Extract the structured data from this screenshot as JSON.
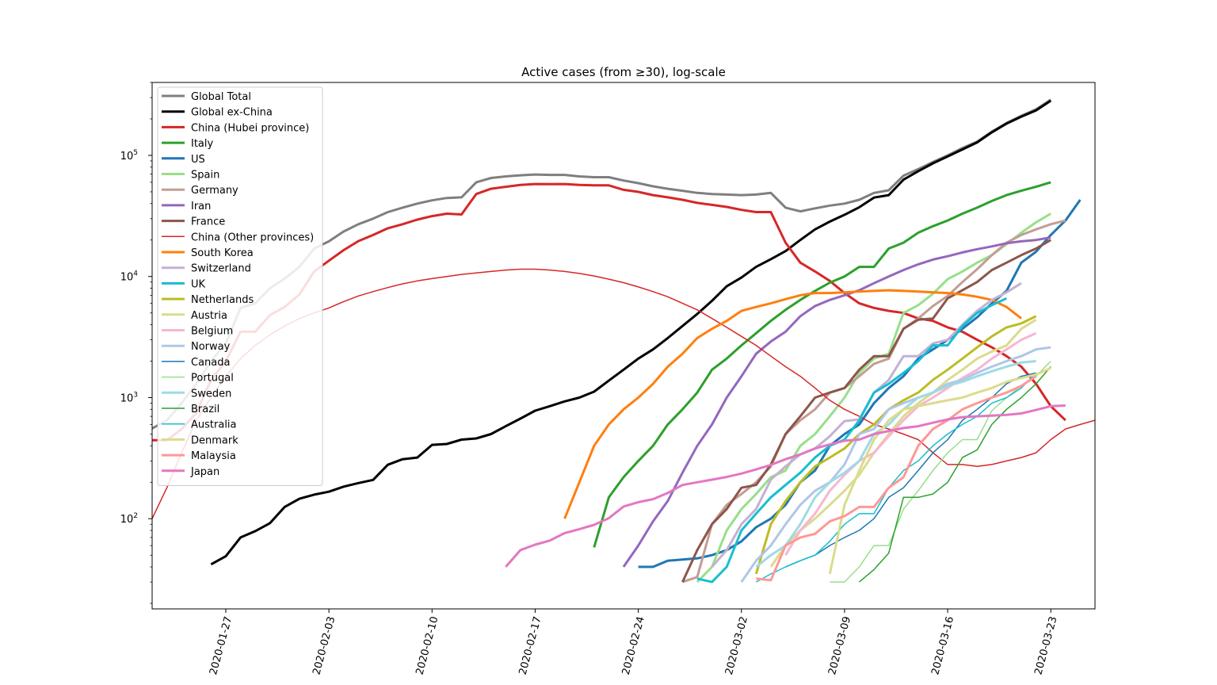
{
  "chart_data": {
    "type": "line",
    "title": "Active cases (from ≥30), log-scale",
    "xlabel": "",
    "ylabel": "",
    "y_scale": "log",
    "ylim": [
      18,
      400000
    ],
    "xlim": [
      "2020-01-22",
      "2020-03-26"
    ],
    "grid": false,
    "legend_position": "top-left",
    "x_ticks": [
      "2020-01-27",
      "2020-02-03",
      "2020-02-10",
      "2020-02-17",
      "2020-02-24",
      "2020-03-02",
      "2020-03-09",
      "2020-03-16",
      "2020-03-23"
    ],
    "y_ticks": [
      {
        "value": 100,
        "base": "10",
        "exp": "2"
      },
      {
        "value": 1000,
        "base": "10",
        "exp": "3"
      },
      {
        "value": 10000,
        "base": "10",
        "exp": "4"
      },
      {
        "value": 100000,
        "base": "10",
        "exp": "5"
      }
    ],
    "series": [
      {
        "name": "Global Total",
        "color": "#7f7f7f",
        "width": 3,
        "start": "2020-01-22",
        "values": [
          555,
          650,
          900,
          1300,
          2000,
          2800,
          5500,
          6000,
          8000,
          9600,
          12000,
          17000,
          19500,
          23500,
          27000,
          30000,
          34000,
          37000,
          40000,
          42500,
          44500,
          45000,
          60000,
          65000,
          67000,
          68500,
          69500,
          69000,
          69000,
          67000,
          66000,
          66000,
          62000,
          59000,
          55500,
          53000,
          51000,
          49000,
          48000,
          47500,
          47000,
          47500,
          49000,
          37000,
          34500,
          36500,
          38500,
          40000,
          43000,
          49000,
          51500,
          68000,
          77000,
          88000,
          100000,
          115000,
          130000,
          157000,
          185000,
          212000,
          240000,
          288000
        ]
      },
      {
        "name": "Global ex-China",
        "color": "#000000",
        "width": 3,
        "start": "2020-01-26",
        "values": [
          42,
          49,
          70,
          79,
          92,
          125,
          146,
          158,
          167,
          184,
          197,
          209,
          279,
          310,
          320,
          407,
          414,
          450,
          460,
          500,
          580,
          670,
          780,
          850,
          930,
          1000,
          1120,
          1380,
          1700,
          2100,
          2500,
          3100,
          3900,
          4900,
          6300,
          8300,
          9800,
          12000,
          13900,
          16200,
          20000,
          24500,
          28400,
          32300,
          37300,
          44800,
          47000,
          63000,
          74000,
          86000,
          98000,
          112000,
          128000,
          155000,
          183000,
          209000,
          235000,
          283000
        ]
      },
      {
        "name": "China (Hubei province)",
        "color": "#d62728",
        "width": 3,
        "start": "2020-01-22",
        "values": [
          445,
          445,
          549,
          750,
          1400,
          2000,
          3500,
          3500,
          4800,
          5600,
          7100,
          11000,
          13500,
          16500,
          19600,
          22000,
          25000,
          27000,
          29500,
          31500,
          33000,
          32500,
          48000,
          53000,
          55000,
          57000,
          58000,
          57800,
          58000,
          57000,
          56500,
          56500,
          52000,
          50000,
          47000,
          45000,
          43000,
          40500,
          39000,
          37500,
          35500,
          34000,
          34000,
          19000,
          13000,
          11000,
          9200,
          7300,
          6000,
          5500,
          5200,
          5000,
          4500,
          4300,
          3800,
          3500,
          3000,
          2600,
          2200,
          1800,
          1300,
          850,
          650
        ]
      },
      {
        "name": "Italy",
        "color": "#2ca02c",
        "width": 3,
        "start": "2020-02-21",
        "values": [
          58,
          150,
          220,
          300,
          400,
          600,
          800,
          1100,
          1700,
          2100,
          2700,
          3400,
          4300,
          5300,
          6400,
          7600,
          8900,
          10000,
          12000,
          12000,
          17000,
          19000,
          23000,
          26000,
          29000,
          33000,
          37000,
          42000,
          47000,
          51000,
          55000,
          60000
        ]
      },
      {
        "name": "US",
        "color": "#1f77b4",
        "width": 3,
        "start": "2020-02-24",
        "values": [
          40,
          40,
          45,
          46,
          47,
          50,
          55,
          65,
          85,
          100,
          130,
          200,
          250,
          400,
          500,
          600,
          900,
          1200,
          1500,
          2100,
          2500,
          3000,
          3700,
          4600,
          6000,
          7600,
          13000,
          16000,
          22000,
          29000,
          43000
        ]
      },
      {
        "name": "Spain",
        "color": "#98df8a",
        "width": 3,
        "start": "2020-02-28",
        "values": [
          30,
          40,
          80,
          120,
          160,
          220,
          250,
          400,
          500,
          700,
          1000,
          1600,
          2100,
          2300,
          5000,
          5800,
          7200,
          9500,
          11000,
          13000,
          15000,
          18500,
          23000,
          28000,
          33000
        ]
      },
      {
        "name": "Germany",
        "color": "#c49c94",
        "width": 3,
        "start": "2020-02-27",
        "values": [
          30,
          33,
          90,
          130,
          160,
          200,
          270,
          500,
          650,
          800,
          1100,
          1200,
          1500,
          1900,
          2100,
          3700,
          4500,
          5700,
          6900,
          9000,
          11500,
          15000,
          19000,
          22000,
          24500,
          27000,
          29000
        ]
      },
      {
        "name": "Iran",
        "color": "#9467bd",
        "width": 3,
        "start": "2020-02-23",
        "values": [
          40,
          60,
          95,
          140,
          240,
          400,
          600,
          1000,
          1500,
          2300,
          2900,
          3500,
          4700,
          5700,
          6400,
          7000,
          7700,
          8800,
          10000,
          11300,
          12600,
          13800,
          14700,
          15800,
          16800,
          17700,
          18800,
          19500,
          20000,
          21000
        ]
      },
      {
        "name": "France",
        "color": "#8c564b",
        "width": 3,
        "start": "2020-02-27",
        "values": [
          30,
          55,
          90,
          120,
          180,
          190,
          280,
          500,
          700,
          1000,
          1100,
          1200,
          1700,
          2200,
          2200,
          3700,
          4400,
          4500,
          6600,
          7700,
          9000,
          11300,
          13000,
          15000,
          17000,
          20000
        ]
      },
      {
        "name": "China (Other provinces)",
        "color": "#d62728",
        "width": 1.5,
        "start": "2020-01-22",
        "values": [
          100,
          180,
          350,
          650,
          1000,
          1500,
          2100,
          2700,
          3300,
          3900,
          4500,
          5000,
          5500,
          6200,
          6900,
          7500,
          8100,
          8700,
          9200,
          9600,
          10000,
          10400,
          10700,
          11000,
          11300,
          11500,
          11500,
          11300,
          11000,
          10600,
          10100,
          9500,
          8900,
          8200,
          7500,
          6800,
          6000,
          5300,
          4500,
          3800,
          3200,
          2700,
          2200,
          1800,
          1500,
          1200,
          950,
          800,
          700,
          600,
          550,
          500,
          450,
          350,
          280,
          280,
          270,
          280,
          300,
          320,
          350,
          450,
          550,
          600,
          650
        ]
      },
      {
        "name": "South Korea",
        "color": "#ff7f0e",
        "width": 3,
        "start": "2020-02-19",
        "values": [
          100,
          200,
          400,
          600,
          800,
          1000,
          1300,
          1800,
          2300,
          3100,
          3700,
          4300,
          5200,
          5600,
          6000,
          6500,
          7000,
          7300,
          7300,
          7400,
          7500,
          7600,
          7700,
          7600,
          7500,
          7400,
          7300,
          7100,
          6800,
          6400,
          5600,
          4500
        ]
      },
      {
        "name": "Switzerland",
        "color": "#c5b0d5",
        "width": 3,
        "start": "2020-02-29",
        "values": [
          40,
          55,
          90,
          120,
          210,
          270,
          340,
          380,
          480,
          640,
          660,
          1100,
          1400,
          2200,
          2200,
          2800,
          3000,
          4000,
          5200,
          6400,
          7400,
          8800
        ]
      },
      {
        "name": "UK",
        "color": "#17becf",
        "width": 3,
        "start": "2020-02-28",
        "values": [
          32,
          30,
          40,
          80,
          110,
          150,
          190,
          240,
          320,
          400,
          450,
          650,
          1100,
          1300,
          1600,
          2000,
          2700,
          2700,
          3900,
          5000,
          5800,
          6600
        ]
      },
      {
        "name": "Netherlands",
        "color": "#bcbd22",
        "width": 3,
        "start": "2020-03-03",
        "values": [
          35,
          90,
          140,
          200,
          270,
          320,
          380,
          500,
          600,
          800,
          950,
          1100,
          1400,
          1700,
          2100,
          2600,
          3200,
          3800,
          4100,
          4700
        ]
      },
      {
        "name": "Austria",
        "color": "#dbdb8d",
        "width": 3,
        "start": "2020-03-04",
        "values": [
          40,
          60,
          80,
          100,
          130,
          170,
          230,
          350,
          500,
          700,
          900,
          1100,
          1400,
          1700,
          2100,
          2400,
          2700,
          3700,
          4400
        ]
      },
      {
        "name": "Belgium",
        "color": "#f7b6d2",
        "width": 3,
        "start": "2020-03-05",
        "values": [
          50,
          80,
          110,
          170,
          230,
          300,
          350,
          480,
          650,
          850,
          1000,
          1200,
          1450,
          1700,
          2100,
          2500,
          3000,
          3400
        ]
      },
      {
        "name": "Norway",
        "color": "#aec7e8",
        "width": 3,
        "start": "2020-03-02",
        "values": [
          30,
          45,
          60,
          90,
          130,
          170,
          200,
          280,
          500,
          550,
          800,
          900,
          1000,
          1100,
          1300,
          1400,
          1600,
          1800,
          2000,
          2200,
          2500,
          2600
        ]
      },
      {
        "name": "Canada",
        "color": "#1f77b4",
        "width": 1.5,
        "start": "2020-03-05",
        "values": [
          40,
          45,
          50,
          60,
          70,
          80,
          100,
          150,
          180,
          250,
          350,
          450,
          650,
          800,
          1000,
          1300,
          1500,
          1600
        ]
      },
      {
        "name": "Portugal",
        "color": "#98df8a",
        "width": 1.5,
        "start": "2020-03-08",
        "values": [
          30,
          30,
          40,
          60,
          60,
          120,
          170,
          250,
          350,
          450,
          450,
          780,
          1000,
          1250,
          1500,
          2000
        ]
      },
      {
        "name": "Sweden",
        "color": "#9edae5",
        "width": 3,
        "start": "2020-03-03",
        "values": [
          40,
          50,
          60,
          90,
          150,
          200,
          240,
          300,
          500,
          600,
          800,
          1000,
          1100,
          1250,
          1350,
          1500,
          1650,
          1800,
          1950,
          2000
        ]
      },
      {
        "name": "Brazil",
        "color": "#2ca02c",
        "width": 1.5,
        "start": "2020-03-10",
        "values": [
          30,
          38,
          52,
          150,
          150,
          160,
          200,
          320,
          370,
          600,
          800,
          1000,
          1300,
          1800
        ]
      },
      {
        "name": "Australia",
        "color": "#17becf",
        "width": 1.5,
        "start": "2020-03-03",
        "values": [
          30,
          35,
          40,
          45,
          50,
          65,
          90,
          110,
          110,
          180,
          250,
          300,
          400,
          500,
          600,
          700,
          900,
          1000,
          1200,
          1600
        ]
      },
      {
        "name": "Denmark",
        "color": "#dbdb8d",
        "width": 3,
        "start": "2020-03-08",
        "values": [
          35,
          130,
          250,
          450,
          650,
          800,
          850,
          900,
          950,
          1000,
          1100,
          1200,
          1350,
          1450,
          1550,
          1750
        ]
      },
      {
        "name": "Malaysia",
        "color": "#ff9896",
        "width": 3,
        "start": "2020-03-03",
        "values": [
          32,
          31,
          60,
          70,
          75,
          95,
          105,
          125,
          125,
          180,
          220,
          400,
          550,
          650,
          800,
          900,
          1000,
          1100,
          1250,
          1500
        ]
      },
      {
        "name": "Japan",
        "color": "#e377c2",
        "width": 3,
        "start": "2020-02-15",
        "values": [
          40,
          55,
          61,
          66,
          76,
          82,
          89,
          101,
          126,
          137,
          145,
          163,
          190,
          200,
          210,
          221,
          236,
          255,
          278,
          310,
          340,
          380,
          410,
          440,
          450,
          500,
          530,
          560,
          580,
          620,
          660,
          690,
          700,
          710,
          720,
          740,
          790,
          850,
          860
        ]
      }
    ]
  }
}
